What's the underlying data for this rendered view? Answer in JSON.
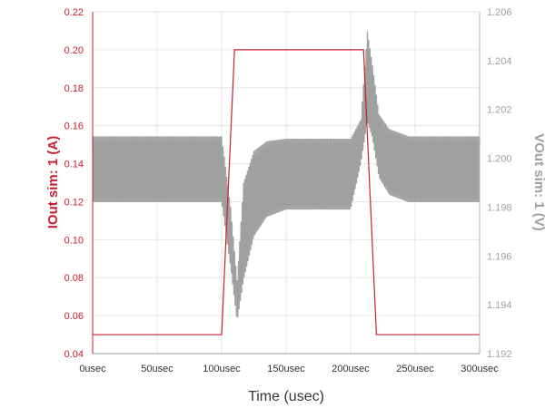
{
  "chart_data": {
    "type": "line",
    "xlabel": "Time (usec)",
    "ylabel_left": "IOut sim: 1 (A)",
    "ylabel_right": "VOut sim: 1 (V)",
    "xlim": [
      0,
      300
    ],
    "ylim_left": [
      0.04,
      0.22
    ],
    "ylim_right": [
      1.192,
      1.206
    ],
    "x_ticks": [
      "0usec",
      "50usec",
      "100usec",
      "150usec",
      "200usec",
      "250usec",
      "300usec"
    ],
    "y_left_ticks": [
      "0.04",
      "0.06",
      "0.08",
      "0.10",
      "0.12",
      "0.14",
      "0.16",
      "0.18",
      "0.20",
      "0.22"
    ],
    "y_right_ticks": [
      "1.192",
      "1.194",
      "1.196",
      "1.198",
      "1.200",
      "1.202",
      "1.204",
      "1.206"
    ],
    "grid": true,
    "series": [
      {
        "name": "IOut sim: 1",
        "axis": "left",
        "color": "#c8202f",
        "x": [
          0,
          100,
          110,
          210,
          220,
          300
        ],
        "y": [
          0.05,
          0.05,
          0.2,
          0.2,
          0.05,
          0.05
        ]
      },
      {
        "name": "VOut sim: 1",
        "axis": "right",
        "color": "#a0a0a0",
        "x": [
          0,
          100,
          107,
          112,
          117,
          125,
          135,
          150,
          200,
          208,
          213,
          217,
          222,
          230,
          245,
          300
        ],
        "y_upper": [
          1.2009,
          1.2009,
          1.198,
          1.195,
          1.199,
          1.2003,
          1.2007,
          1.2008,
          1.2008,
          1.2016,
          1.2052,
          1.2038,
          1.2018,
          1.2012,
          1.2009,
          1.2009
        ],
        "y_lower": [
          1.1982,
          1.1982,
          1.1955,
          1.1933,
          1.195,
          1.1968,
          1.1976,
          1.1979,
          1.1979,
          1.1998,
          1.2015,
          1.2008,
          1.1992,
          1.1985,
          1.1982,
          1.1982
        ]
      }
    ]
  }
}
